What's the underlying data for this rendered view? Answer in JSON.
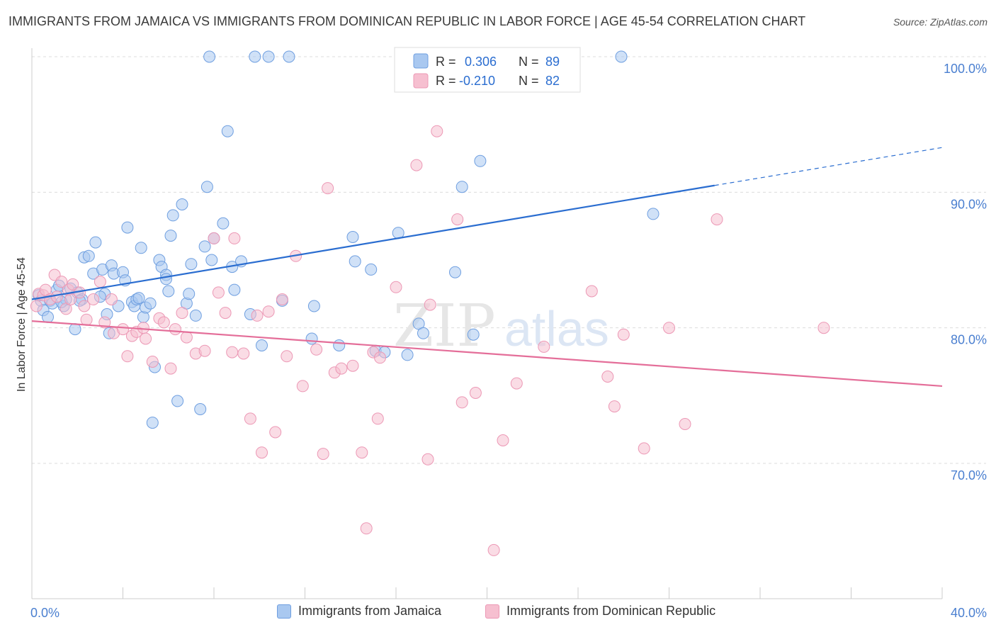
{
  "title": "IMMIGRANTS FROM JAMAICA VS IMMIGRANTS FROM DOMINICAN REPUBLIC IN LABOR FORCE | AGE 45-54 CORRELATION CHART",
  "source": "Source: ZipAtlas.com",
  "watermark": {
    "zip": "ZIP",
    "atlas": "atlas"
  },
  "colors": {
    "jamaica_fill": "#a9c8f0",
    "jamaica_stroke": "#6f9fe0",
    "jamaica_line": "#2a6dd0",
    "dominican_fill": "#f6bfd0",
    "dominican_stroke": "#ec98b5",
    "dominican_line": "#e46e99",
    "tick_text": "#4a7fd0"
  },
  "legend": {
    "jamaica": {
      "r_label": "R = ",
      "r_value": "0.306",
      "n_label": "N = ",
      "n_value": "89"
    },
    "dominican": {
      "r_label": "R = ",
      "r_value": "-0.210",
      "n_label": "N = ",
      "n_value": "82"
    }
  },
  "bottom_legend": {
    "jamaica": "Immigrants from Jamaica",
    "dominican": "Immigrants from Dominican Republic"
  },
  "chart_data": {
    "type": "scatter",
    "title": "IMMIGRANTS FROM JAMAICA VS IMMIGRANTS FROM DOMINICAN REPUBLIC IN LABOR FORCE | AGE 45-54 CORRELATION CHART",
    "xlabel": "",
    "ylabel": "In Labor Force | Age 45-54",
    "xlim": [
      0,
      40
    ],
    "ylim": [
      61,
      101
    ],
    "x_tick_labels": {
      "min": "0.0%",
      "max": "40.0%"
    },
    "y_ticks": [
      {
        "value": 100,
        "label": "100.0%"
      },
      {
        "value": 90,
        "label": "90.0%"
      },
      {
        "value": 80,
        "label": "80.0%"
      },
      {
        "value": 70,
        "label": "70.0%"
      }
    ],
    "grid": true,
    "legend_position": "top-center",
    "series": [
      {
        "name": "Immigrants from Jamaica",
        "R": 0.306,
        "N": 89,
        "trend": {
          "x": [
            0,
            30
          ],
          "y": [
            82.1,
            90.5
          ],
          "dashed_to": {
            "x": 40,
            "y": 93.3
          }
        },
        "points": [
          [
            0.3,
            82.4
          ],
          [
            0.4,
            82.0
          ],
          [
            0.5,
            81.3
          ],
          [
            0.7,
            80.8
          ],
          [
            0.8,
            82.0
          ],
          [
            0.9,
            81.8
          ],
          [
            1.1,
            82.8
          ],
          [
            1.2,
            83.1
          ],
          [
            1.4,
            81.6
          ],
          [
            1.5,
            82.1
          ],
          [
            1.7,
            82.9
          ],
          [
            1.9,
            79.9
          ],
          [
            2.0,
            82.6
          ],
          [
            2.2,
            82.1
          ],
          [
            2.3,
            85.2
          ],
          [
            2.5,
            85.3
          ],
          [
            2.7,
            84.0
          ],
          [
            2.8,
            86.3
          ],
          [
            3.1,
            84.3
          ],
          [
            3.2,
            82.5
          ],
          [
            3.3,
            81.0
          ],
          [
            3.4,
            79.6
          ],
          [
            3.5,
            84.6
          ],
          [
            3.6,
            84.0
          ],
          [
            3.8,
            81.6
          ],
          [
            4.0,
            84.1
          ],
          [
            4.1,
            83.5
          ],
          [
            4.2,
            87.4
          ],
          [
            4.4,
            81.9
          ],
          [
            4.5,
            81.6
          ],
          [
            4.6,
            82.1
          ],
          [
            4.8,
            85.9
          ],
          [
            4.9,
            80.8
          ],
          [
            5.0,
            81.5
          ],
          [
            5.2,
            81.8
          ],
          [
            5.3,
            73.0
          ],
          [
            5.4,
            77.1
          ],
          [
            5.6,
            85.0
          ],
          [
            5.7,
            84.5
          ],
          [
            5.9,
            83.9
          ],
          [
            5.9,
            83.6
          ],
          [
            6.1,
            86.8
          ],
          [
            6.2,
            88.3
          ],
          [
            6.4,
            74.6
          ],
          [
            6.6,
            89.1
          ],
          [
            6.8,
            81.8
          ],
          [
            6.9,
            82.5
          ],
          [
            7.0,
            84.7
          ],
          [
            7.2,
            80.9
          ],
          [
            7.4,
            74.0
          ],
          [
            7.6,
            86.0
          ],
          [
            7.7,
            90.4
          ],
          [
            7.8,
            100.0
          ],
          [
            7.9,
            85.0
          ],
          [
            8.0,
            86.6
          ],
          [
            8.4,
            87.7
          ],
          [
            8.6,
            94.5
          ],
          [
            8.8,
            84.5
          ],
          [
            8.9,
            82.8
          ],
          [
            9.2,
            84.9
          ],
          [
            9.6,
            81.0
          ],
          [
            9.8,
            100.0
          ],
          [
            10.1,
            78.7
          ],
          [
            10.4,
            100.0
          ],
          [
            11.0,
            82.0
          ],
          [
            11.3,
            100.0
          ],
          [
            12.4,
            81.6
          ],
          [
            12.3,
            79.2
          ],
          [
            13.5,
            78.7
          ],
          [
            14.1,
            86.7
          ],
          [
            14.2,
            84.9
          ],
          [
            14.9,
            84.3
          ],
          [
            15.1,
            78.3
          ],
          [
            15.5,
            78.2
          ],
          [
            16.1,
            87.0
          ],
          [
            16.5,
            78.0
          ],
          [
            17.0,
            80.3
          ],
          [
            17.2,
            79.6
          ],
          [
            18.6,
            84.1
          ],
          [
            18.9,
            90.4
          ],
          [
            19.4,
            79.5
          ],
          [
            19.7,
            92.3
          ],
          [
            25.9,
            100.0
          ],
          [
            27.3,
            88.4
          ],
          [
            1.3,
            81.9
          ],
          [
            2.1,
            82.0
          ],
          [
            3.0,
            82.3
          ],
          [
            4.7,
            82.2
          ],
          [
            6.0,
            82.7
          ]
        ]
      },
      {
        "name": "Immigrants from Dominican Republic",
        "R": -0.21,
        "N": 82,
        "trend": {
          "x": [
            0,
            40
          ],
          "y": [
            80.5,
            75.7
          ]
        },
        "points": [
          [
            0.2,
            81.6
          ],
          [
            0.3,
            82.5
          ],
          [
            0.5,
            82.4
          ],
          [
            0.6,
            82.8
          ],
          [
            0.8,
            82.1
          ],
          [
            1.0,
            83.9
          ],
          [
            1.1,
            82.3
          ],
          [
            1.3,
            83.4
          ],
          [
            1.5,
            81.4
          ],
          [
            1.6,
            82.8
          ],
          [
            1.7,
            82.1
          ],
          [
            1.8,
            83.2
          ],
          [
            2.1,
            82.6
          ],
          [
            2.3,
            81.6
          ],
          [
            2.4,
            80.6
          ],
          [
            2.7,
            82.1
          ],
          [
            3.0,
            83.4
          ],
          [
            3.2,
            80.4
          ],
          [
            3.5,
            82.1
          ],
          [
            3.6,
            79.6
          ],
          [
            4.0,
            79.9
          ],
          [
            4.2,
            77.9
          ],
          [
            4.4,
            79.4
          ],
          [
            4.6,
            79.7
          ],
          [
            4.9,
            80.0
          ],
          [
            5.0,
            79.2
          ],
          [
            5.3,
            77.5
          ],
          [
            5.6,
            80.7
          ],
          [
            5.8,
            80.4
          ],
          [
            6.1,
            77.0
          ],
          [
            6.3,
            79.9
          ],
          [
            6.6,
            81.1
          ],
          [
            6.8,
            79.3
          ],
          [
            7.2,
            78.1
          ],
          [
            7.6,
            78.3
          ],
          [
            8.0,
            86.6
          ],
          [
            8.2,
            82.6
          ],
          [
            8.5,
            81.1
          ],
          [
            8.9,
            86.6
          ],
          [
            8.8,
            78.2
          ],
          [
            9.3,
            78.1
          ],
          [
            9.6,
            73.3
          ],
          [
            9.9,
            80.9
          ],
          [
            10.1,
            70.8
          ],
          [
            10.4,
            81.2
          ],
          [
            10.7,
            72.3
          ],
          [
            11.0,
            82.1
          ],
          [
            11.2,
            77.9
          ],
          [
            11.6,
            85.3
          ],
          [
            11.9,
            75.7
          ],
          [
            12.5,
            78.4
          ],
          [
            12.8,
            70.7
          ],
          [
            13.0,
            90.3
          ],
          [
            13.3,
            76.7
          ],
          [
            13.6,
            77.0
          ],
          [
            14.1,
            77.2
          ],
          [
            14.5,
            70.8
          ],
          [
            14.7,
            65.2
          ],
          [
            15.0,
            78.2
          ],
          [
            15.2,
            73.3
          ],
          [
            15.3,
            77.8
          ],
          [
            16.0,
            83.0
          ],
          [
            16.9,
            92.0
          ],
          [
            17.4,
            70.3
          ],
          [
            17.5,
            81.7
          ],
          [
            17.8,
            94.5
          ],
          [
            18.7,
            88.0
          ],
          [
            18.9,
            74.5
          ],
          [
            19.5,
            75.2
          ],
          [
            20.3,
            63.6
          ],
          [
            20.7,
            71.7
          ],
          [
            21.3,
            75.9
          ],
          [
            22.5,
            78.6
          ],
          [
            24.6,
            82.7
          ],
          [
            25.3,
            76.4
          ],
          [
            25.6,
            74.2
          ],
          [
            26.0,
            79.5
          ],
          [
            26.9,
            71.1
          ],
          [
            28.0,
            80.0
          ],
          [
            28.7,
            72.9
          ],
          [
            30.1,
            88.0
          ],
          [
            34.8,
            80.0
          ]
        ]
      }
    ]
  }
}
